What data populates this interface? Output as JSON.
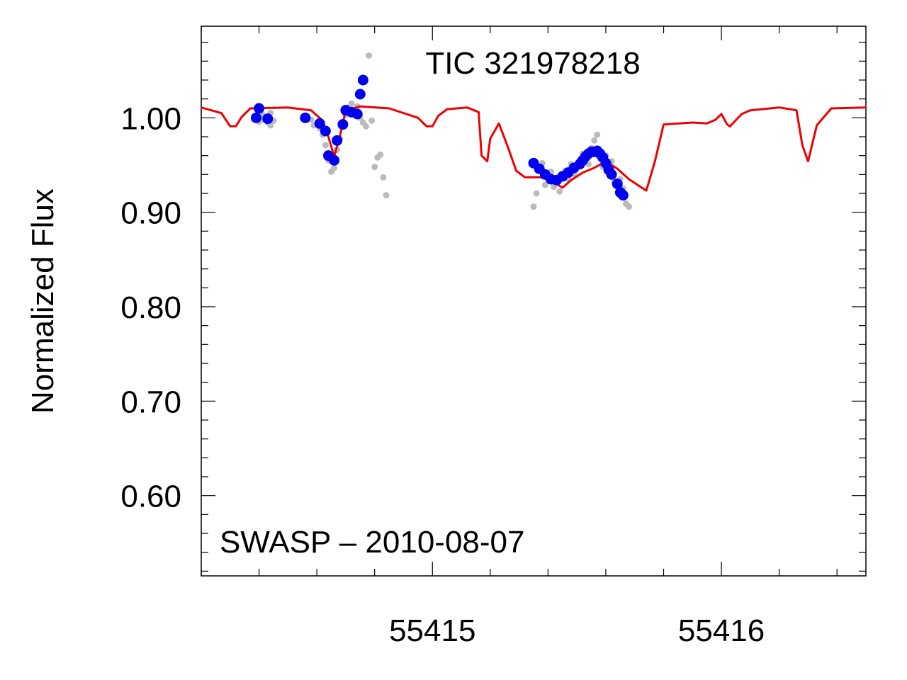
{
  "chart_data": {
    "type": "scatter",
    "title": "TIC 321978218",
    "annotation": "SWASP – 2010-08-07",
    "xlabel": "",
    "ylabel": "Normalized Flux",
    "xlim": [
      55414.2,
      55416.5
    ],
    "ylim": [
      0.515,
      1.097
    ],
    "x_ticks": [
      55415,
      55416
    ],
    "x_tick_labels": [
      "55415",
      "55416"
    ],
    "y_ticks": [
      0.6,
      0.7,
      0.8,
      0.9,
      1.0
    ],
    "y_tick_labels": [
      "0.60",
      "0.70",
      "0.80",
      "0.90",
      "1.00"
    ],
    "x_minor_step": 0.2,
    "y_minor_step": 0.02,
    "grid": false,
    "colors": {
      "raw": "#bbbbbb",
      "binned": "#0000ee",
      "model": "#ee0000"
    },
    "series": [
      {
        "kind": "raw",
        "x": [
          55414.39,
          55414.4,
          55414.41,
          55414.41,
          55414.43,
          55414.44,
          55414.44,
          55414.45,
          55414.58,
          55414.59,
          55414.6,
          55414.61,
          55414.62,
          55414.63,
          55414.64,
          55414.65,
          55414.66,
          55414.67,
          55414.68,
          55414.69,
          55414.7,
          55414.71,
          55414.72,
          55414.73,
          55414.74,
          55414.75,
          55414.76,
          55414.77,
          55414.78,
          55414.79,
          55414.8,
          55414.81,
          55414.82,
          55414.83,
          55414.84,
          55415.35,
          55415.36,
          55415.37,
          55415.38,
          55415.39,
          55415.4,
          55415.41,
          55415.42,
          55415.43,
          55415.44,
          55415.45,
          55415.46,
          55415.47,
          55415.48,
          55415.49,
          55415.5,
          55415.51,
          55415.52,
          55415.53,
          55415.54,
          55415.55,
          55415.56,
          55415.57,
          55415.58,
          55415.59,
          55415.6,
          55415.61,
          55415.62,
          55415.63,
          55415.64,
          55415.65,
          55415.66,
          55415.67,
          55415.68
        ],
        "y": [
          1.002,
          0.996,
          1.004,
          0.998,
          0.995,
          1.005,
          0.992,
          0.997,
          0.998,
          0.992,
          0.993,
          0.989,
          0.982,
          0.971,
          0.955,
          0.943,
          0.947,
          0.966,
          0.978,
          0.992,
          1.003,
          1.011,
          1.015,
          1.008,
          1.012,
          1.0,
          0.995,
          0.991,
          1.066,
          0.997,
          0.948,
          0.958,
          0.961,
          0.937,
          0.918,
          0.906,
          0.92,
          0.945,
          0.952,
          0.929,
          0.936,
          0.943,
          0.927,
          0.931,
          0.922,
          0.939,
          0.944,
          0.935,
          0.951,
          0.941,
          0.948,
          0.955,
          0.962,
          0.958,
          0.951,
          0.968,
          0.976,
          0.982,
          0.957,
          0.948,
          0.96,
          0.944,
          0.954,
          0.932,
          0.928,
          0.935,
          0.925,
          0.909,
          0.906
        ]
      },
      {
        "kind": "binned",
        "x": [
          55414.39,
          55414.4,
          55414.43,
          55414.56,
          55414.61,
          55414.63,
          55414.64,
          55414.66,
          55414.67,
          55414.69,
          55414.7,
          55414.72,
          55414.74,
          55414.75,
          55414.76,
          55415.35,
          55415.37,
          55415.39,
          55415.41,
          55415.43,
          55415.45,
          55415.47,
          55415.49,
          55415.51,
          55415.52,
          55415.53,
          55415.54,
          55415.55,
          55415.56,
          55415.57,
          55415.58,
          55415.59,
          55415.6,
          55415.61,
          55415.62,
          55415.64,
          55415.65,
          55415.66
        ],
        "y": [
          1.0,
          1.01,
          0.999,
          1.0,
          0.994,
          0.986,
          0.96,
          0.955,
          0.976,
          0.993,
          1.008,
          1.006,
          1.004,
          1.025,
          1.04,
          0.952,
          0.946,
          0.94,
          0.935,
          0.934,
          0.938,
          0.942,
          0.947,
          0.951,
          0.955,
          0.959,
          0.962,
          0.964,
          0.964,
          0.965,
          0.962,
          0.958,
          0.952,
          0.945,
          0.94,
          0.93,
          0.921,
          0.918
        ]
      },
      {
        "kind": "model",
        "x": [
          55414.2,
          55414.27,
          55414.3,
          55414.32,
          55414.34,
          55414.37,
          55414.5,
          55414.58,
          55414.62,
          55414.64,
          55414.66,
          55414.68,
          55414.7,
          55414.75,
          55414.85,
          55414.95,
          55414.98,
          55415.0,
          55415.02,
          55415.05,
          55415.12,
          55415.16,
          55415.17,
          55415.19,
          55415.2,
          55415.23,
          55415.26,
          55415.29,
          55415.32,
          55415.4,
          55415.43,
          55415.45,
          55415.48,
          55415.52,
          55415.56,
          55415.6,
          55415.64,
          55415.68,
          55415.72,
          55415.74,
          55415.77,
          55415.8,
          55415.9,
          55415.95,
          55415.98,
          55416.0,
          55416.02,
          55416.03,
          55416.07,
          55416.1,
          55416.2,
          55416.26,
          55416.28,
          55416.3,
          55416.33,
          55416.38,
          55416.5
        ],
        "y": [
          1.011,
          1.005,
          0.991,
          0.991,
          1.001,
          1.01,
          1.011,
          1.008,
          0.997,
          0.98,
          0.959,
          0.981,
          1.008,
          1.012,
          1.01,
          1.0,
          0.991,
          0.991,
          1.002,
          1.009,
          1.011,
          1.006,
          0.96,
          0.954,
          0.978,
          0.994,
          0.97,
          0.944,
          0.937,
          0.937,
          0.93,
          0.926,
          0.934,
          0.942,
          0.947,
          0.954,
          0.946,
          0.935,
          0.927,
          0.923,
          0.954,
          0.993,
          0.995,
          0.994,
          0.998,
          1.004,
          0.993,
          0.991,
          1.004,
          1.008,
          1.011,
          1.008,
          0.971,
          0.954,
          0.992,
          1.01,
          1.011
        ]
      }
    ]
  }
}
